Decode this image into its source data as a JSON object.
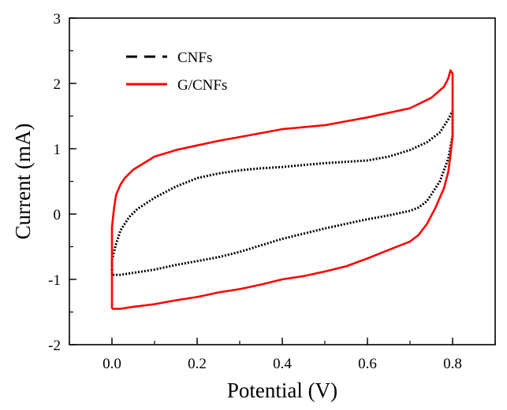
{
  "chart_data": {
    "type": "line",
    "title": "",
    "xlabel": "Potential (V)",
    "ylabel": "Current (mA)",
    "xlim": [
      -0.1,
      0.9
    ],
    "ylim": [
      -2,
      3
    ],
    "xticks": [
      0.0,
      0.2,
      0.4,
      0.6,
      0.8
    ],
    "xtick_labels": [
      "0.0",
      "0.2",
      "0.4",
      "0.6",
      "0.8"
    ],
    "yticks": [
      -2,
      -1,
      0,
      1,
      2,
      3
    ],
    "ytick_labels": [
      "-2",
      "-1",
      "0",
      "1",
      "2",
      "3"
    ],
    "grid": false,
    "legend_position": "top-left",
    "series": [
      {
        "name": "CNFs",
        "color": "#000000",
        "style": "dotted",
        "x": [
          0.0,
          0.0,
          0.01,
          0.02,
          0.04,
          0.06,
          0.1,
          0.15,
          0.2,
          0.25,
          0.3,
          0.35,
          0.4,
          0.45,
          0.5,
          0.55,
          0.6,
          0.65,
          0.7,
          0.74,
          0.77,
          0.79,
          0.8,
          0.8,
          0.79,
          0.77,
          0.74,
          0.72,
          0.7,
          0.65,
          0.6,
          0.55,
          0.5,
          0.45,
          0.4,
          0.35,
          0.3,
          0.25,
          0.2,
          0.15,
          0.1,
          0.05,
          0.02,
          0.0,
          0.0
        ],
        "y": [
          -0.85,
          -0.7,
          -0.45,
          -0.25,
          -0.05,
          0.08,
          0.25,
          0.42,
          0.55,
          0.62,
          0.67,
          0.7,
          0.72,
          0.75,
          0.78,
          0.8,
          0.82,
          0.88,
          0.98,
          1.1,
          1.25,
          1.45,
          1.58,
          1.2,
          0.85,
          0.5,
          0.2,
          0.1,
          0.05,
          -0.02,
          -0.08,
          -0.15,
          -0.22,
          -0.3,
          -0.38,
          -0.48,
          -0.58,
          -0.66,
          -0.72,
          -0.78,
          -0.85,
          -0.9,
          -0.93,
          -0.93,
          -0.85
        ]
      },
      {
        "name": "G/CNFs",
        "color": "#ff0000",
        "style": "solid",
        "x": [
          0.0,
          0.0,
          0.0,
          0.005,
          0.01,
          0.02,
          0.03,
          0.05,
          0.08,
          0.1,
          0.15,
          0.2,
          0.25,
          0.3,
          0.35,
          0.4,
          0.45,
          0.5,
          0.55,
          0.6,
          0.65,
          0.7,
          0.75,
          0.78,
          0.79,
          0.795,
          0.8,
          0.8,
          0.8,
          0.8,
          0.795,
          0.79,
          0.78,
          0.76,
          0.74,
          0.72,
          0.7,
          0.65,
          0.6,
          0.55,
          0.5,
          0.45,
          0.4,
          0.35,
          0.3,
          0.25,
          0.2,
          0.15,
          0.1,
          0.05,
          0.02,
          0.005,
          0.0
        ],
        "y": [
          -1.45,
          -0.6,
          -0.2,
          0.1,
          0.3,
          0.45,
          0.55,
          0.68,
          0.8,
          0.88,
          0.98,
          1.05,
          1.12,
          1.18,
          1.24,
          1.3,
          1.33,
          1.36,
          1.42,
          1.48,
          1.55,
          1.62,
          1.78,
          1.95,
          2.08,
          2.2,
          2.15,
          1.8,
          1.5,
          1.2,
          0.9,
          0.65,
          0.4,
          0.1,
          -0.15,
          -0.32,
          -0.42,
          -0.55,
          -0.68,
          -0.8,
          -0.88,
          -0.95,
          -1.0,
          -1.08,
          -1.15,
          -1.2,
          -1.27,
          -1.32,
          -1.38,
          -1.42,
          -1.45,
          -1.45,
          -1.45
        ]
      }
    ]
  }
}
